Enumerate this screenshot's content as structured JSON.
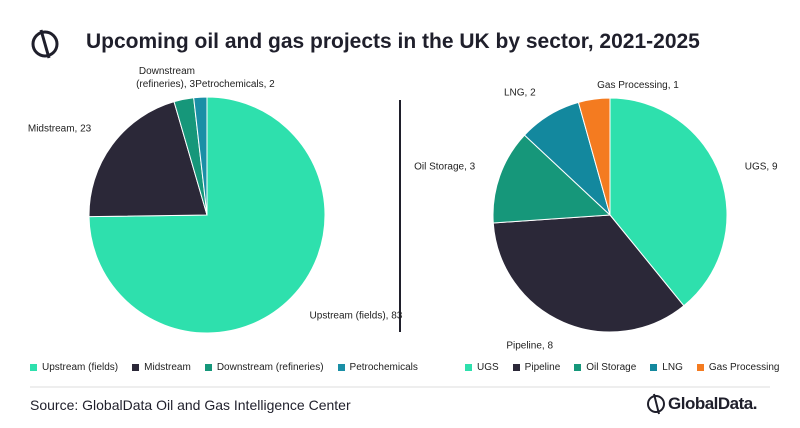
{
  "title": "Upcoming oil and gas projects in the UK by sector, 2021-2025",
  "chart_data": [
    {
      "type": "pie",
      "categories": [
        "Upstream (fields)",
        "Midstream",
        "Downstream (refineries)",
        "Petrochemicals"
      ],
      "values": [
        83,
        23,
        3,
        2
      ],
      "value_labels": [
        "Upstream (fields), 83",
        "Midstream, 23",
        "Downstream (refineries), 3",
        "Petrochemicals, 2"
      ],
      "colors": [
        "#2ee0ad",
        "#2b2838",
        "#16977a",
        "#1a8fa6"
      ]
    },
    {
      "type": "pie",
      "categories": [
        "UGS",
        "Pipeline",
        "Oil Storage",
        "LNG",
        "Gas Processing"
      ],
      "values": [
        9,
        8,
        3,
        2,
        1
      ],
      "value_labels": [
        "UGS, 9",
        "Pipeline, 8",
        "Oil Storage, 3",
        "LNG, 2",
        "Gas Processing, 1"
      ],
      "colors": [
        "#2ee0ad",
        "#2b2838",
        "#16977a",
        "#13889e",
        "#f47b20"
      ]
    }
  ],
  "source": "Source: GlobalData Oil and Gas Intelligence Center",
  "logo": "GlobalData."
}
